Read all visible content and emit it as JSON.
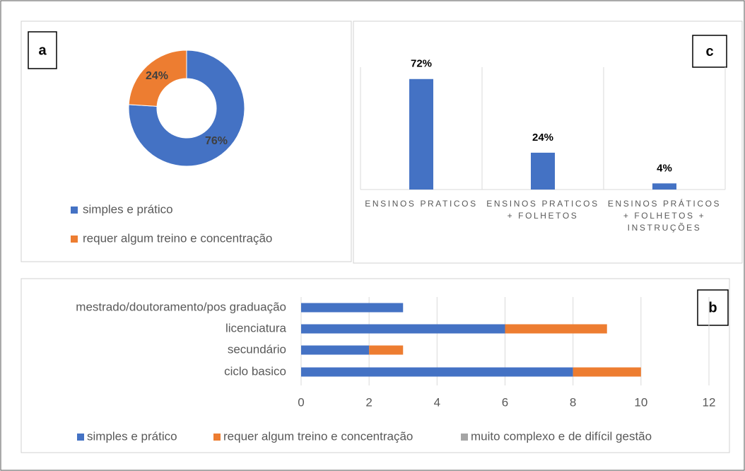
{
  "chart_data": [
    {
      "type": "donut",
      "label": "a",
      "categories": [
        "simples e prático",
        "requer algum treino e concentração"
      ],
      "values": [
        76,
        24
      ],
      "value_labels": [
        "76%",
        "24%"
      ],
      "colors": [
        "#4472c4",
        "#ed7d31"
      ]
    },
    {
      "type": "bar",
      "label": "c",
      "categories": [
        "ENSINOS PRATICOS",
        "ENSINOS PRATICOS + FOLHETOS",
        "ENSINOS PRÁTICOS + FOLHETOS + INSTRUÇÕES"
      ],
      "values": [
        72,
        24,
        4
      ],
      "value_labels": [
        "72%",
        "24%",
        "4%"
      ],
      "color": "#4472c4"
    },
    {
      "type": "hbar_stacked",
      "label": "b",
      "categories": [
        "mestrado/doutoramento/pos graduação",
        "licenciatura",
        "secundário",
        "ciclo basico"
      ],
      "series": [
        {
          "name": "simples e prático",
          "color": "#4472c4",
          "values": [
            3,
            6,
            2,
            8
          ]
        },
        {
          "name": "requer algum treino e concentração",
          "color": "#ed7d31",
          "values": [
            0,
            3,
            1,
            2
          ]
        },
        {
          "name": "muito complexo e de difícil gestão",
          "color": "#a5a5a5",
          "values": [
            0,
            0,
            0,
            0
          ]
        }
      ],
      "xlim": [
        0,
        12
      ],
      "xticks": [
        0,
        2,
        4,
        6,
        8,
        10,
        12
      ],
      "grid": true
    }
  ]
}
